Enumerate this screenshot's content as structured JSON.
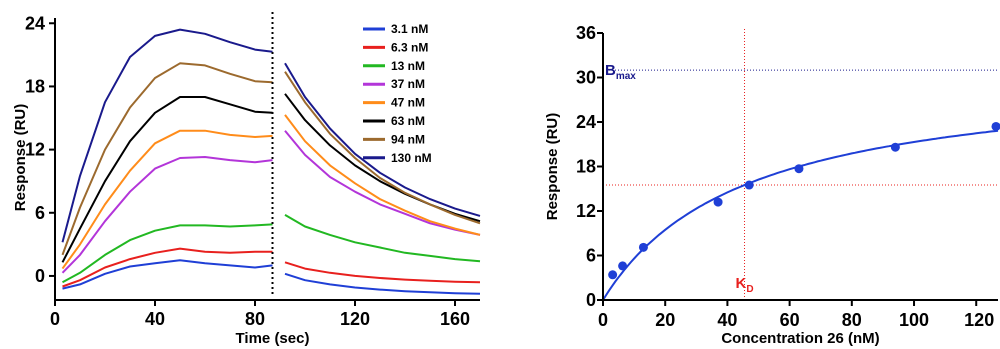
{
  "chart_data": [
    {
      "type": "line",
      "xlabel": "Time (sec)",
      "ylabel": "Response (RU)",
      "xlim": [
        0,
        170
      ],
      "ylim": [
        -2,
        24.5
      ],
      "xticks": [
        0,
        40,
        80,
        120,
        160
      ],
      "yticks": [
        0,
        6,
        12,
        18,
        24
      ],
      "legend_position": "top-right",
      "injection_end_marker_x": 87,
      "association_window": [
        3,
        87
      ],
      "dissociation_window": [
        92,
        170
      ],
      "series": [
        {
          "name": "3.1 nM",
          "color": "#1f3fd6",
          "x": [
            3,
            10,
            20,
            30,
            40,
            50,
            60,
            70,
            80,
            87,
            92,
            100,
            110,
            120,
            130,
            140,
            150,
            160,
            170
          ],
          "y": [
            -1.2,
            -0.8,
            0.2,
            0.9,
            1.2,
            1.5,
            1.2,
            1.0,
            0.8,
            1.0,
            0.2,
            -0.4,
            -0.8,
            -1.1,
            -1.3,
            -1.45,
            -1.55,
            -1.65,
            -1.7
          ]
        },
        {
          "name": "6.3 nM",
          "color": "#e8201e",
          "x": [
            3,
            10,
            20,
            30,
            40,
            50,
            60,
            70,
            80,
            87,
            92,
            100,
            110,
            120,
            130,
            140,
            150,
            160,
            170
          ],
          "y": [
            -1.0,
            -0.4,
            0.8,
            1.6,
            2.2,
            2.6,
            2.3,
            2.2,
            2.3,
            2.3,
            1.3,
            0.7,
            0.3,
            0.0,
            -0.2,
            -0.35,
            -0.45,
            -0.55,
            -0.6
          ]
        },
        {
          "name": "13 nM",
          "color": "#22b822",
          "x": [
            3,
            10,
            20,
            30,
            40,
            50,
            60,
            70,
            80,
            87,
            92,
            100,
            110,
            120,
            130,
            140,
            150,
            160,
            170
          ],
          "y": [
            -0.6,
            0.3,
            2.0,
            3.4,
            4.3,
            4.8,
            4.8,
            4.7,
            4.8,
            4.9,
            5.8,
            4.7,
            3.9,
            3.2,
            2.7,
            2.2,
            1.9,
            1.6,
            1.4
          ]
        },
        {
          "name": "37 nM",
          "color": "#b335d9",
          "x": [
            3,
            10,
            20,
            30,
            40,
            50,
            60,
            70,
            80,
            87,
            92,
            100,
            110,
            120,
            130,
            140,
            150,
            160,
            170
          ],
          "y": [
            0.3,
            2.0,
            5.2,
            8.0,
            10.2,
            11.2,
            11.3,
            11.0,
            10.8,
            11.0,
            13.8,
            11.5,
            9.4,
            8.0,
            6.8,
            5.9,
            5.0,
            4.4,
            3.9
          ]
        },
        {
          "name": "47 nM",
          "color": "#ff8c1a",
          "x": [
            3,
            10,
            20,
            30,
            40,
            50,
            60,
            70,
            80,
            87,
            92,
            100,
            110,
            120,
            130,
            140,
            150,
            160,
            170
          ],
          "y": [
            0.7,
            3.0,
            6.8,
            10.0,
            12.6,
            13.8,
            13.8,
            13.4,
            13.2,
            13.3,
            15.3,
            12.8,
            10.5,
            8.8,
            7.3,
            6.2,
            5.2,
            4.5,
            3.9
          ]
        },
        {
          "name": "63 nM",
          "color": "#000000",
          "x": [
            3,
            10,
            20,
            30,
            40,
            50,
            60,
            70,
            80,
            87,
            92,
            100,
            110,
            120,
            130,
            140,
            150,
            160,
            170
          ],
          "y": [
            1.3,
            4.5,
            9.0,
            12.8,
            15.5,
            17.0,
            17.0,
            16.3,
            15.6,
            15.5,
            17.3,
            14.8,
            12.4,
            10.5,
            9.0,
            7.8,
            6.8,
            5.9,
            5.2
          ]
        },
        {
          "name": "94 nM",
          "color": "#9c6a2e",
          "x": [
            3,
            10,
            20,
            30,
            40,
            50,
            60,
            70,
            80,
            87,
            92,
            100,
            110,
            120,
            130,
            140,
            150,
            160,
            170
          ],
          "y": [
            2.0,
            6.5,
            12.0,
            16.0,
            18.8,
            20.2,
            20.0,
            19.2,
            18.5,
            18.4,
            19.4,
            16.5,
            13.5,
            11.2,
            9.3,
            7.9,
            6.8,
            5.8,
            5.0
          ]
        },
        {
          "name": "130 nM",
          "color": "#1a1a8c",
          "x": [
            3,
            10,
            20,
            30,
            40,
            50,
            60,
            70,
            80,
            87,
            92,
            100,
            110,
            120,
            130,
            140,
            150,
            160,
            170
          ],
          "y": [
            3.2,
            9.5,
            16.5,
            20.8,
            22.8,
            23.4,
            23.0,
            22.2,
            21.5,
            21.3,
            20.2,
            17.0,
            14.0,
            11.6,
            9.8,
            8.4,
            7.3,
            6.4,
            5.7
          ]
        }
      ]
    },
    {
      "type": "scatter",
      "xlabel": "Concentration 26 (nM)",
      "ylabel": "Response (RU)",
      "xlim": [
        0,
        127
      ],
      "ylim": [
        0,
        36
      ],
      "xticks": [
        0,
        20,
        40,
        60,
        80,
        100,
        120
      ],
      "yticks": [
        0,
        6,
        12,
        18,
        24,
        30,
        36
      ],
      "points": {
        "color": "#1f3fd6",
        "x": [
          3.1,
          6.3,
          13,
          37,
          47,
          63,
          94,
          130
        ],
        "y": [
          3.4,
          4.6,
          7.1,
          13.2,
          15.5,
          17.7,
          20.6,
          23.4
        ]
      },
      "fit": {
        "model": "one-site binding",
        "color": "#1f3fd6",
        "bmax": 31,
        "kd": 45.5
      },
      "annotations": {
        "bmax_label": "B",
        "bmax_subscript": "max",
        "bmax_color": "#1a1a8c",
        "kd_label": "K",
        "kd_subscript": "D",
        "kd_color": "#e8201e"
      }
    }
  ]
}
